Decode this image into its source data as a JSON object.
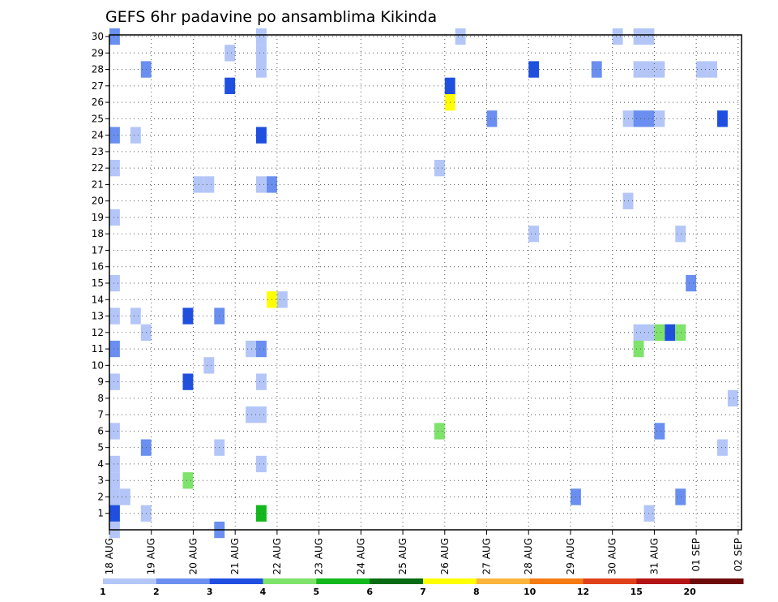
{
  "chart_data": {
    "type": "heatmap",
    "title": "GEFS 6hr padavine po ansamblima Kikinda",
    "xlabel": "",
    "ylabel": "",
    "y_ticks": [
      "1",
      "2",
      "3",
      "4",
      "5",
      "6",
      "7",
      "8",
      "9",
      "10",
      "11",
      "12",
      "13",
      "14",
      "15",
      "16",
      "17",
      "18",
      "19",
      "20",
      "21",
      "22",
      "23",
      "24",
      "25",
      "26",
      "27",
      "28",
      "29",
      "30"
    ],
    "ylim": [
      0,
      30
    ],
    "x_ticks": [
      "18 AUG",
      "19 AUG",
      "20 AUG",
      "21 AUG",
      "22 AUG",
      "23 AUG",
      "24 AUG",
      "25 AUG",
      "26 AUG",
      "27 AUG",
      "28 AUG",
      "29 AUG",
      "30 AUG",
      "31 AUG",
      "01 SEP",
      "02 SEP"
    ],
    "x_unit": "6-hour steps since 18 AUG 00Z",
    "grid": true,
    "legend": {
      "placement": "bottom",
      "labels": [
        "1",
        "2",
        "3",
        "4",
        "5",
        "6",
        "7",
        "8",
        "10",
        "12",
        "15",
        "20"
      ],
      "colors": [
        "#b3c6f7",
        "#6a8ff0",
        "#1f4fe0",
        "#7ee36a",
        "#13b81c",
        "#066b12",
        "#ffff00",
        "#fbb43c",
        "#f57a12",
        "#e0401a",
        "#b41414",
        "#6e0a0a"
      ]
    },
    "cells": [
      {
        "x": 0.0,
        "y": 30,
        "v": 2
      },
      {
        "x": 0.0,
        "y": 24,
        "v": 2
      },
      {
        "x": 0.0,
        "y": 22,
        "v": 1
      },
      {
        "x": 0.0,
        "y": 19,
        "v": 1
      },
      {
        "x": 0.0,
        "y": 15,
        "v": 1
      },
      {
        "x": 0.0,
        "y": 13,
        "v": 1
      },
      {
        "x": 0.0,
        "y": 11,
        "v": 2
      },
      {
        "x": 0.0,
        "y": 9,
        "v": 1
      },
      {
        "x": 0.0,
        "y": 6,
        "v": 1
      },
      {
        "x": 0.0,
        "y": 4,
        "v": 1
      },
      {
        "x": 0.0,
        "y": 3,
        "v": 1
      },
      {
        "x": 0.0,
        "y": 2,
        "v": 1
      },
      {
        "x": 0.0,
        "y": 1,
        "v": 3
      },
      {
        "x": 0.0,
        "y": 0,
        "v": 1
      },
      {
        "x": 0.5,
        "y": 2,
        "v": 1
      },
      {
        "x": 1.0,
        "y": 24,
        "v": 1
      },
      {
        "x": 1.0,
        "y": 13,
        "v": 1
      },
      {
        "x": 1.5,
        "y": 28,
        "v": 2
      },
      {
        "x": 1.5,
        "y": 12,
        "v": 1
      },
      {
        "x": 1.5,
        "y": 5,
        "v": 2
      },
      {
        "x": 1.5,
        "y": 1,
        "v": 1
      },
      {
        "x": 3.5,
        "y": 13,
        "v": 3
      },
      {
        "x": 3.5,
        "y": 9,
        "v": 3
      },
      {
        "x": 3.5,
        "y": 3,
        "v": 4
      },
      {
        "x": 4.0,
        "y": 21,
        "v": 1
      },
      {
        "x": 4.5,
        "y": 21,
        "v": 1
      },
      {
        "x": 4.5,
        "y": 10,
        "v": 1
      },
      {
        "x": 5.0,
        "y": 13,
        "v": 2
      },
      {
        "x": 5.0,
        "y": 5,
        "v": 1
      },
      {
        "x": 5.0,
        "y": 0,
        "v": 2
      },
      {
        "x": 5.5,
        "y": 29,
        "v": 1
      },
      {
        "x": 5.5,
        "y": 27,
        "v": 3
      },
      {
        "x": 6.5,
        "y": 11,
        "v": 1
      },
      {
        "x": 6.5,
        "y": 7,
        "v": 1
      },
      {
        "x": 7.0,
        "y": 30,
        "v": 1
      },
      {
        "x": 7.0,
        "y": 29,
        "v": 1
      },
      {
        "x": 7.0,
        "y": 28,
        "v": 1
      },
      {
        "x": 7.0,
        "y": 24,
        "v": 3
      },
      {
        "x": 7.0,
        "y": 21,
        "v": 1
      },
      {
        "x": 7.0,
        "y": 11,
        "v": 2
      },
      {
        "x": 7.0,
        "y": 9,
        "v": 1
      },
      {
        "x": 7.0,
        "y": 7,
        "v": 1
      },
      {
        "x": 7.0,
        "y": 4,
        "v": 1
      },
      {
        "x": 7.0,
        "y": 1,
        "v": 5
      },
      {
        "x": 7.5,
        "y": 21,
        "v": 2
      },
      {
        "x": 7.5,
        "y": 14,
        "v": 7
      },
      {
        "x": 8.0,
        "y": 14,
        "v": 1
      },
      {
        "x": 15.5,
        "y": 22,
        "v": 1
      },
      {
        "x": 15.5,
        "y": 6,
        "v": 4
      },
      {
        "x": 16.0,
        "y": 27,
        "v": 3
      },
      {
        "x": 16.0,
        "y": 26,
        "v": 7
      },
      {
        "x": 16.5,
        "y": 30,
        "v": 1
      },
      {
        "x": 18.0,
        "y": 25,
        "v": 2
      },
      {
        "x": 20.0,
        "y": 28,
        "v": 3
      },
      {
        "x": 20.0,
        "y": 18,
        "v": 1
      },
      {
        "x": 22.0,
        "y": 2,
        "v": 2
      },
      {
        "x": 23.0,
        "y": 28,
        "v": 2
      },
      {
        "x": 24.0,
        "y": 30,
        "v": 1
      },
      {
        "x": 24.5,
        "y": 25,
        "v": 1
      },
      {
        "x": 24.5,
        "y": 20,
        "v": 1
      },
      {
        "x": 25.0,
        "y": 30,
        "v": 1
      },
      {
        "x": 25.0,
        "y": 28,
        "v": 1
      },
      {
        "x": 25.0,
        "y": 25,
        "v": 2
      },
      {
        "x": 25.0,
        "y": 12,
        "v": 1
      },
      {
        "x": 25.0,
        "y": 11,
        "v": 4
      },
      {
        "x": 25.5,
        "y": 30,
        "v": 1
      },
      {
        "x": 25.5,
        "y": 28,
        "v": 1
      },
      {
        "x": 25.5,
        "y": 25,
        "v": 2
      },
      {
        "x": 25.5,
        "y": 12,
        "v": 1
      },
      {
        "x": 25.5,
        "y": 1,
        "v": 1
      },
      {
        "x": 26.0,
        "y": 28,
        "v": 1
      },
      {
        "x": 26.0,
        "y": 25,
        "v": 1
      },
      {
        "x": 26.0,
        "y": 12,
        "v": 4
      },
      {
        "x": 26.0,
        "y": 6,
        "v": 2
      },
      {
        "x": 26.5,
        "y": 12,
        "v": 3
      },
      {
        "x": 27.0,
        "y": 18,
        "v": 1
      },
      {
        "x": 27.0,
        "y": 12,
        "v": 4
      },
      {
        "x": 27.0,
        "y": 2,
        "v": 2
      },
      {
        "x": 27.5,
        "y": 15,
        "v": 2
      },
      {
        "x": 28.0,
        "y": 28,
        "v": 1
      },
      {
        "x": 28.5,
        "y": 28,
        "v": 1
      },
      {
        "x": 29.0,
        "y": 25,
        "v": 3
      },
      {
        "x": 29.0,
        "y": 5,
        "v": 1
      },
      {
        "x": 29.5,
        "y": 8,
        "v": 1
      }
    ]
  }
}
